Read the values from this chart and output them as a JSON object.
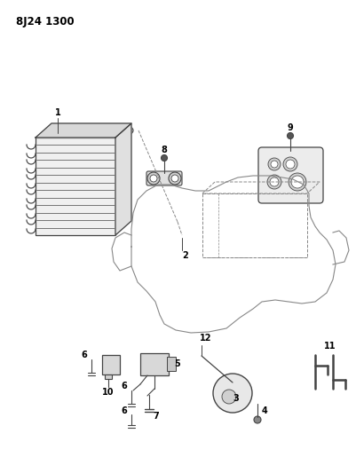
{
  "title": "8J24 1300",
  "bg_color": "#ffffff",
  "lc": "#444444",
  "lc_light": "#888888",
  "figsize": [
    4.02,
    5.33
  ],
  "dpi": 100
}
